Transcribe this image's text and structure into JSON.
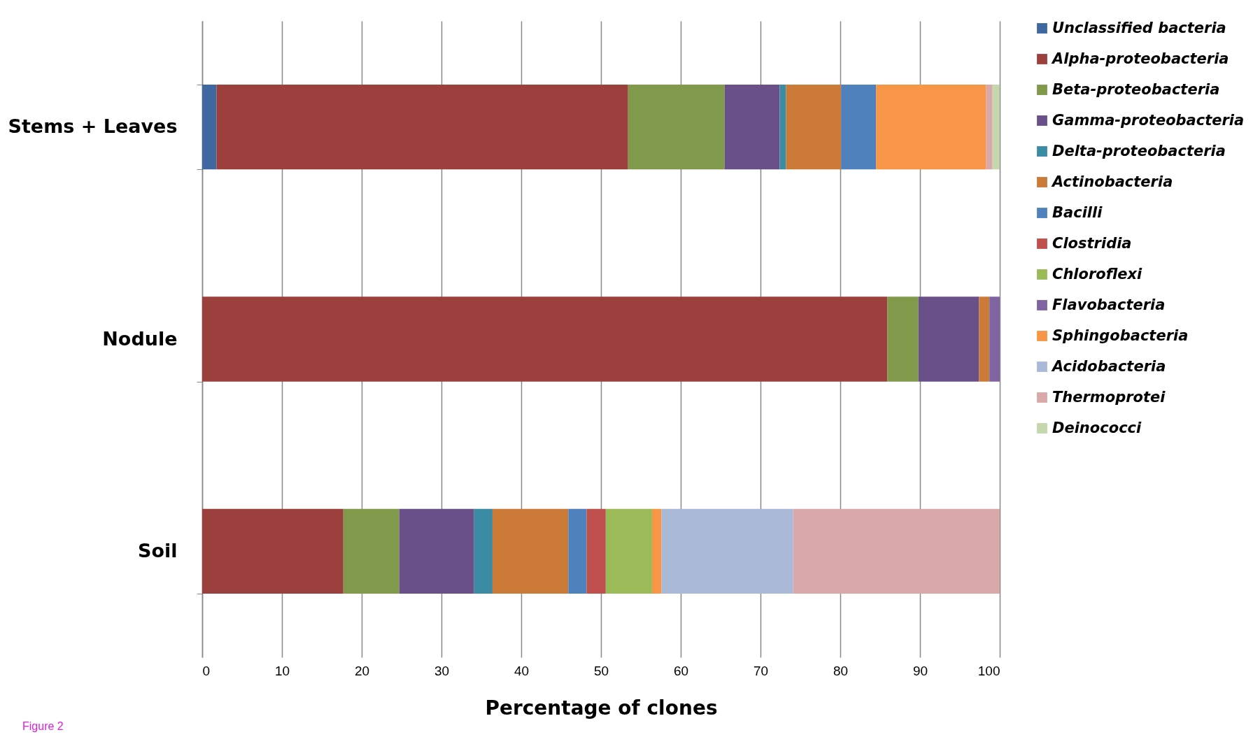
{
  "chart_data": {
    "type": "bar",
    "orientation": "horizontal",
    "stacked": true,
    "categories": [
      "Stems + Leaves",
      "Nodule",
      "Soil"
    ],
    "xlabel": "Percentage of clones",
    "xlim": [
      0,
      100
    ],
    "xticks": [
      0,
      10,
      20,
      30,
      40,
      50,
      60,
      70,
      80,
      90,
      100
    ],
    "grid": "x",
    "legend": "right",
    "annotations": [
      "Figure 2"
    ],
    "series": [
      {
        "name": "Unclassified bacteria",
        "color": "#4068a0",
        "values": [
          1.8,
          null,
          null
        ]
      },
      {
        "name": "Alpha-proteobacteria",
        "color": "#9c403e",
        "values": [
          51.6,
          85.9,
          17.7
        ]
      },
      {
        "name": "Beta-proteobacteria",
        "color": "#80994a",
        "values": [
          12.1,
          3.9,
          7.0
        ]
      },
      {
        "name": "Gamma-proteobacteria",
        "color": "#6a5088",
        "values": [
          6.9,
          7.6,
          9.4
        ]
      },
      {
        "name": "Delta-proteobacteria",
        "color": "#3b8ba5",
        "values": [
          0.8,
          null,
          2.3
        ]
      },
      {
        "name": "Actinobacteria",
        "color": "#cb7a38",
        "values": [
          6.9,
          1.3,
          9.5
        ]
      },
      {
        "name": "Bacilli",
        "color": "#4f81bd",
        "values": [
          4.4,
          null,
          2.3
        ]
      },
      {
        "name": "Clostridia",
        "color": "#c0504d",
        "values": [
          null,
          null,
          2.4
        ]
      },
      {
        "name": "Chloroflexi",
        "color": "#9bbb59",
        "values": [
          null,
          null,
          5.8
        ]
      },
      {
        "name": "Flavobacteria",
        "color": "#8064a2",
        "values": [
          null,
          1.3,
          null
        ]
      },
      {
        "name": "Sphingobacteria",
        "color": "#f79646",
        "values": [
          13.8,
          null,
          1.2
        ]
      },
      {
        "name": "Acidobacteria",
        "color": "#aab9d7",
        "values": [
          null,
          null,
          16.5
        ]
      },
      {
        "name": "Thermoprotei",
        "color": "#d9a9a9",
        "values": [
          0.8,
          null,
          25.9
        ]
      },
      {
        "name": "Deinococci",
        "color": "#c6d7ad",
        "values": [
          0.9,
          null,
          null
        ]
      }
    ]
  }
}
